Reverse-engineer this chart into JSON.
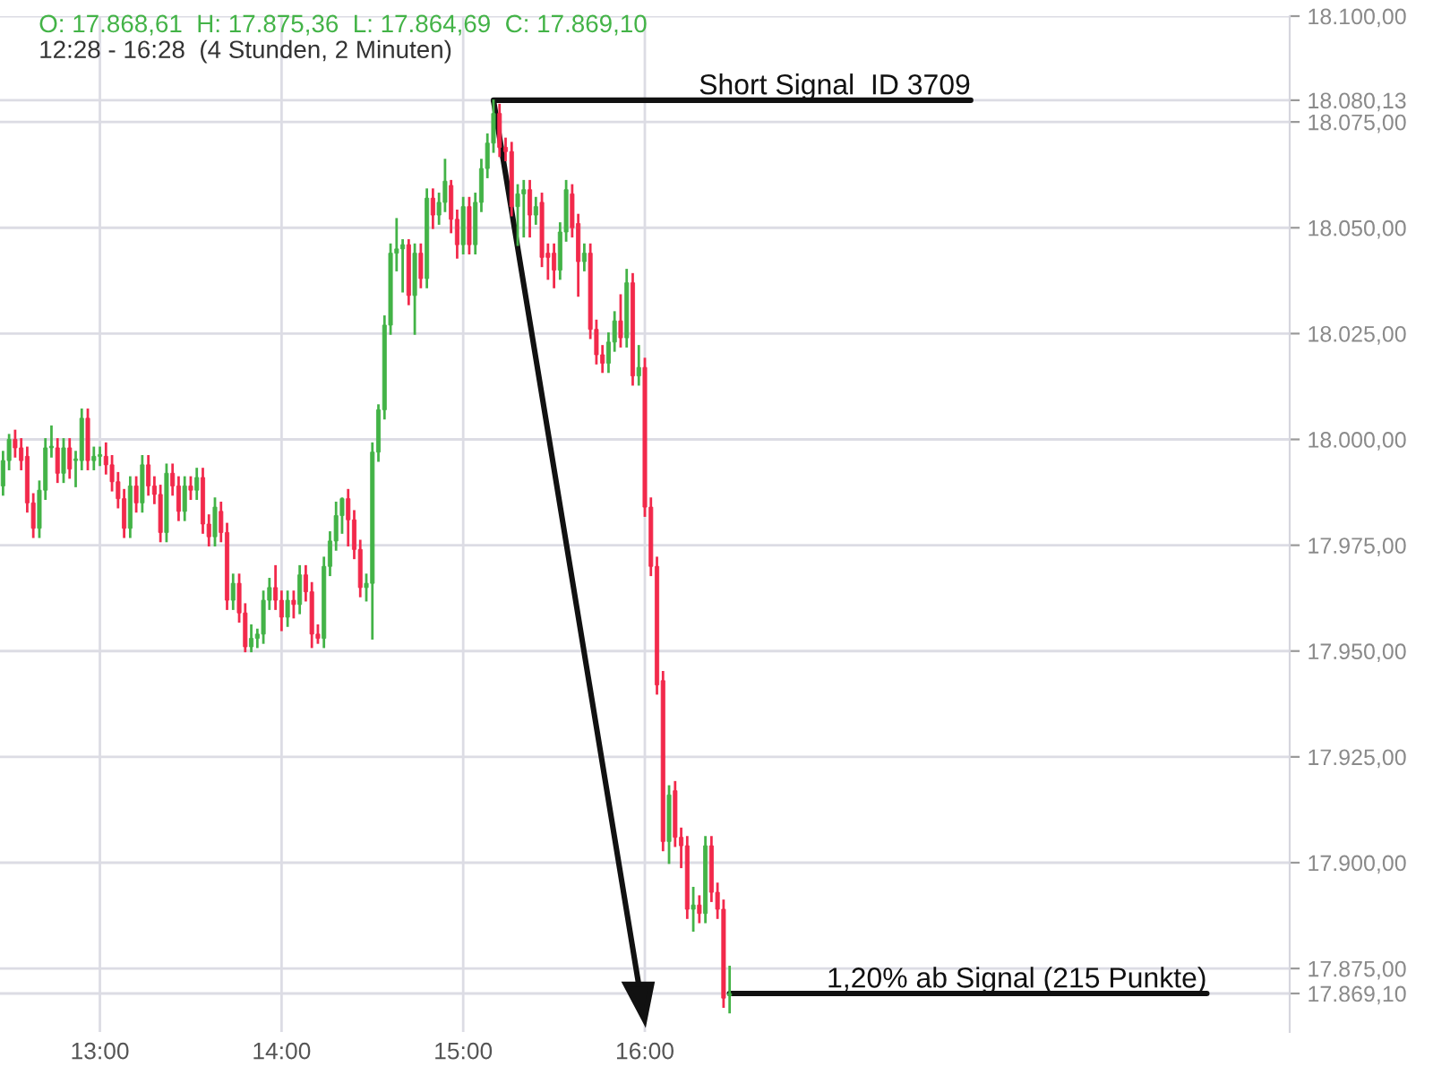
{
  "chart_data": {
    "type": "candlestick",
    "title": "O: 17.868,61  H: 17.875,36  L: 17.864,69  C: 17.869,10",
    "subtitle": "12:28 - 16:28  (4 Stunden, 2 Minuten)",
    "x": [
      12.4667,
      12.5,
      12.5333,
      12.5667,
      12.6,
      12.6333,
      12.6667,
      12.7,
      12.7333,
      12.7667,
      12.8,
      12.8333,
      12.8667,
      12.9,
      12.9333,
      12.9667,
      13.0,
      13.0333,
      13.0667,
      13.1,
      13.1333,
      13.1667,
      13.2,
      13.2333,
      13.2667,
      13.3,
      13.3333,
      13.3667,
      13.4,
      13.4333,
      13.4667,
      13.5,
      13.5333,
      13.5667,
      13.6,
      13.6333,
      13.6667,
      13.7,
      13.7333,
      13.7667,
      13.8,
      13.8333,
      13.8667,
      13.9,
      13.9333,
      13.9667,
      14.0,
      14.0333,
      14.0667,
      14.1,
      14.1333,
      14.1667,
      14.2,
      14.2333,
      14.2667,
      14.3,
      14.3333,
      14.3667,
      14.4,
      14.4333,
      14.4667,
      14.5,
      14.5333,
      14.5667,
      14.6,
      14.6333,
      14.6667,
      14.7,
      14.7333,
      14.7667,
      14.8,
      14.8333,
      14.8667,
      14.9,
      14.9333,
      14.9667,
      15.0,
      15.0333,
      15.0667,
      15.1,
      15.1333,
      15.1667,
      15.2,
      15.2333,
      15.2667,
      15.3,
      15.3333,
      15.3667,
      15.4,
      15.4333,
      15.4667,
      15.5,
      15.5333,
      15.5667,
      15.6,
      15.6333,
      15.6667,
      15.7,
      15.7333,
      15.7667,
      15.8,
      15.8333,
      15.8667,
      15.9,
      15.9333,
      15.9667,
      16.0,
      16.0333,
      16.0667,
      16.1,
      16.1333,
      16.1667,
      16.2,
      16.2333,
      16.2667,
      16.3,
      16.3333,
      16.3667,
      16.4,
      16.4333,
      16.4667
    ],
    "ohlc": [
      [
        17989,
        17997,
        17987,
        17995
      ],
      [
        17995,
        18001,
        17993,
        18000
      ],
      [
        18000,
        18002,
        17996,
        17998
      ],
      [
        17998,
        18000,
        17993,
        17995
      ],
      [
        17996,
        17998,
        17983,
        17985
      ],
      [
        17985,
        17987,
        17977,
        17979
      ],
      [
        17979,
        17990,
        17977,
        17988
      ],
      [
        17988,
        18000,
        17986,
        17998
      ],
      [
        17998,
        18003,
        17996,
        17998
      ],
      [
        17998,
        18000,
        17990,
        17992
      ],
      [
        17992,
        18000,
        17990,
        17998
      ],
      [
        17998,
        18000,
        17991,
        17993
      ],
      [
        17995,
        17997,
        17989,
        17995
      ],
      [
        17995,
        18007,
        17993,
        18005
      ],
      [
        18005,
        18007,
        17993,
        17995
      ],
      [
        17995,
        17998,
        17993,
        17996
      ],
      [
        17996,
        17998,
        17994,
        17996
      ],
      [
        17996,
        17999,
        17992,
        17994
      ],
      [
        17994,
        17996,
        17988,
        17990
      ],
      [
        17990,
        17992,
        17984,
        17986
      ],
      [
        17986,
        17988,
        17977,
        17979
      ],
      [
        17979,
        17991,
        17977,
        17989
      ],
      [
        17989,
        17991,
        17983,
        17985
      ],
      [
        17985,
        17996,
        17983,
        17994
      ],
      [
        17994,
        17996,
        17987,
        17989
      ],
      [
        17989,
        17991,
        17985,
        17987
      ],
      [
        17987,
        17989,
        17976,
        17978
      ],
      [
        17978,
        17994,
        17976,
        17992
      ],
      [
        17992,
        17994,
        17987,
        17989
      ],
      [
        17989,
        17991,
        17981,
        17983
      ],
      [
        17983,
        17991,
        17981,
        17989
      ],
      [
        17989,
        17991,
        17986,
        17988
      ],
      [
        17988,
        17993,
        17986,
        17991
      ],
      [
        17991,
        17993,
        17978,
        17980
      ],
      [
        17980,
        17982,
        17975,
        17977
      ],
      [
        17977,
        17986,
        17975,
        17984
      ],
      [
        17983,
        17985,
        17976,
        17978
      ],
      [
        17978,
        17980,
        17960,
        17962
      ],
      [
        17962,
        17968,
        17960,
        17966
      ],
      [
        17966,
        17968,
        17957,
        17959
      ],
      [
        17959,
        17961,
        17950,
        17951
      ],
      [
        17951,
        17956,
        17950,
        17953
      ],
      [
        17953,
        17955,
        17951,
        17954
      ],
      [
        17954,
        17964,
        17952,
        17962
      ],
      [
        17962,
        17967,
        17960,
        17965
      ],
      [
        17965,
        17970,
        17960,
        17962
      ],
      [
        17962,
        17964,
        17955,
        17958
      ],
      [
        17958,
        17964,
        17956,
        17962
      ],
      [
        17962,
        17964,
        17958,
        17961
      ],
      [
        17961,
        17970,
        17959,
        17968
      ],
      [
        17968,
        17970,
        17962,
        17964
      ],
      [
        17964,
        17966,
        17951,
        17954
      ],
      [
        17954,
        17956,
        17952,
        17953
      ],
      [
        17953,
        17972,
        17951,
        17970
      ],
      [
        17970,
        17978,
        17968,
        17976
      ],
      [
        17976,
        17985,
        17974,
        17982
      ],
      [
        17982,
        17986,
        17978,
        17986
      ],
      [
        17986,
        17988,
        17975,
        17981
      ],
      [
        17981,
        17983,
        17972,
        17974
      ],
      [
        17974,
        17976,
        17963,
        17965
      ],
      [
        17965,
        17968,
        17962,
        17966
      ],
      [
        17966,
        17999,
        17953,
        17997
      ],
      [
        17997,
        18008,
        17995,
        18007
      ],
      [
        18007,
        18029,
        18005,
        18027
      ],
      [
        18027,
        18046,
        18025,
        18044
      ],
      [
        18044,
        18052,
        18040,
        18045
      ],
      [
        18045,
        18047,
        18035,
        18046
      ],
      [
        18046,
        18047,
        18032,
        18034
      ],
      [
        18034,
        18046,
        18025,
        18044
      ],
      [
        18044,
        18046,
        18036,
        18038
      ],
      [
        18038,
        18059,
        18036,
        18057
      ],
      [
        18057,
        18059,
        18050,
        18053
      ],
      [
        18053,
        18058,
        18051,
        18056
      ],
      [
        18056,
        18066,
        18054,
        18061
      ],
      [
        18060,
        18061,
        18049,
        18052
      ],
      [
        18052,
        18054,
        18043,
        18046
      ],
      [
        18046,
        18057,
        18044,
        18055
      ],
      [
        18055,
        18057,
        18044,
        18046
      ],
      [
        18046,
        18058,
        18044,
        18056
      ],
      [
        18056,
        18066,
        18054,
        18064
      ],
      [
        18064,
        18072,
        18062,
        18070
      ],
      [
        18070,
        18080,
        18068,
        18077
      ],
      [
        18077,
        18079,
        18067,
        18069
      ],
      [
        18069,
        18071,
        18066,
        18068
      ],
      [
        18068,
        18070,
        18053,
        18055
      ],
      [
        18055,
        18060,
        18046,
        18058
      ],
      [
        18058,
        18061,
        18048,
        18059
      ],
      [
        18059,
        18061,
        18048,
        18053
      ],
      [
        18053,
        18057,
        18051,
        18055
      ],
      [
        18056,
        18058,
        18041,
        18043
      ],
      [
        18044,
        18046,
        18038,
        18043
      ],
      [
        18044,
        18046,
        18036,
        18040
      ],
      [
        18040,
        18051,
        18038,
        18049
      ],
      [
        18049,
        18061,
        18047,
        18059
      ],
      [
        18058,
        18060,
        18048,
        18050
      ],
      [
        18051,
        18053,
        18034,
        18042
      ],
      [
        18042,
        18046,
        18040,
        18044
      ],
      [
        18044,
        18046,
        18024,
        18026
      ],
      [
        18026,
        18028,
        18018,
        18020
      ],
      [
        18020,
        18022,
        18016,
        18018
      ],
      [
        18018,
        18025,
        18016,
        18023
      ],
      [
        18023,
        18030,
        18021,
        18028
      ],
      [
        18028,
        18034,
        18022,
        18024
      ],
      [
        18024,
        18040,
        18022,
        18037
      ],
      [
        18037,
        18039,
        18013,
        18015
      ],
      [
        18015,
        18022,
        18013,
        18017
      ],
      [
        18017,
        18019,
        17982,
        17984
      ],
      [
        17984,
        17986,
        17968,
        17970
      ],
      [
        17970,
        17972,
        17940,
        17942
      ],
      [
        17943,
        17945,
        17903,
        17905
      ],
      [
        17905,
        17918,
        17900,
        17916
      ],
      [
        17917,
        17919,
        17904,
        17906
      ],
      [
        17906,
        17908,
        17899,
        17904
      ],
      [
        17904,
        17906,
        17887,
        17889
      ],
      [
        17889,
        17894,
        17884,
        17890
      ],
      [
        17890,
        17892,
        17886,
        17888
      ],
      [
        17888,
        17906,
        17886,
        17904
      ],
      [
        17904,
        17906,
        17891,
        17893
      ],
      [
        17893,
        17895,
        17887,
        17889
      ],
      [
        17889,
        17891,
        17866,
        17868
      ],
      [
        17868.61,
        17875.36,
        17864.69,
        17869.1
      ]
    ],
    "xlim": [
      12.45,
      19.55
    ],
    "ylim": [
      17860,
      18100
    ],
    "xticks": [
      {
        "value": 13,
        "label": "13:00"
      },
      {
        "value": 14,
        "label": "14:00"
      },
      {
        "value": 15,
        "label": "15:00"
      },
      {
        "value": 16,
        "label": "16:00"
      }
    ],
    "yticks": [
      {
        "value": 17875,
        "label": "17.875,00"
      },
      {
        "value": 17900,
        "label": "17.900,00"
      },
      {
        "value": 17925,
        "label": "17.925,00"
      },
      {
        "value": 17950,
        "label": "17.950,00"
      },
      {
        "value": 17975,
        "label": "17.975,00"
      },
      {
        "value": 18000,
        "label": "18.000,00"
      },
      {
        "value": 18025,
        "label": "18.025,00"
      },
      {
        "value": 18050,
        "label": "18.050,00"
      },
      {
        "value": 18075,
        "label": "18.075,00"
      },
      {
        "value": 18080.13,
        "label": "18.080,13"
      },
      {
        "value": 18100,
        "label": "18.100,00"
      },
      {
        "value": 17869.1,
        "label": "17.869,10"
      }
    ],
    "grid": true,
    "annotations": [
      {
        "text": "Short Signal  ID 3709",
        "x": 15.1667,
        "y": 18080.13
      },
      {
        "text": "1,20% ab Signal (215 Punkte)",
        "x": 16.4667,
        "y": 17869.1
      }
    ]
  }
}
